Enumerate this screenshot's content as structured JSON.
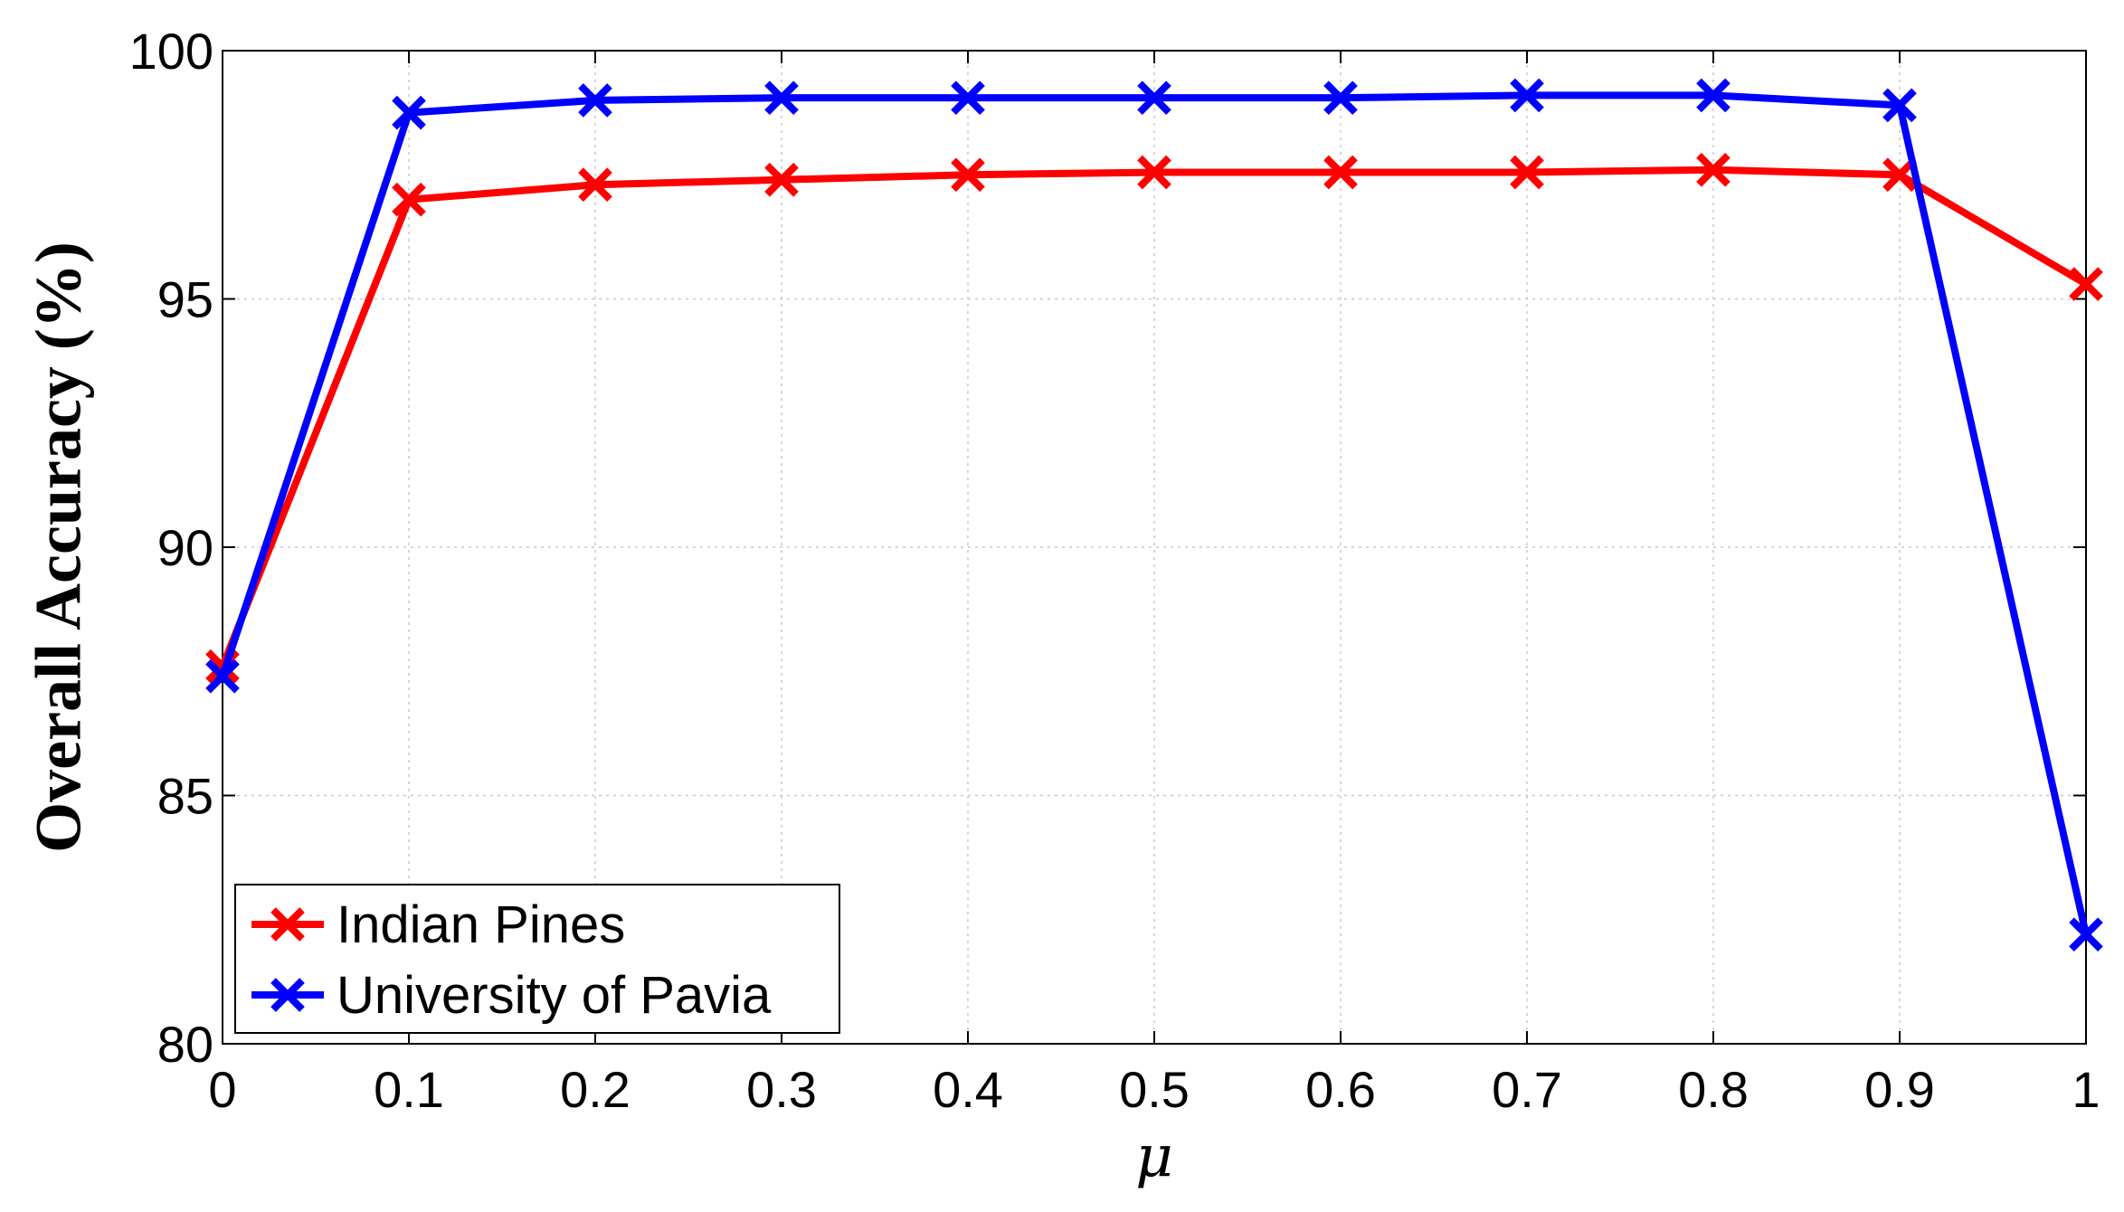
{
  "chart_data": {
    "type": "line",
    "title": "",
    "xlabel": "μ",
    "ylabel": "Overall Accuracy (%)",
    "xlim": [
      0,
      1
    ],
    "ylim": [
      80,
      100
    ],
    "xticks": [
      0,
      0.1,
      0.2,
      0.3,
      0.4,
      0.5,
      0.6,
      0.7,
      0.8,
      0.9,
      1
    ],
    "xtick_labels": [
      "0",
      "0.1",
      "0.2",
      "0.3",
      "0.4",
      "0.5",
      "0.6",
      "0.7",
      "0.8",
      "0.9",
      "1"
    ],
    "yticks": [
      80,
      85,
      90,
      95,
      100
    ],
    "ytick_labels": [
      "80",
      "85",
      "90",
      "95",
      "100"
    ],
    "grid": true,
    "legend_position": "bottom-left",
    "x": [
      0,
      0.1,
      0.2,
      0.3,
      0.4,
      0.5,
      0.6,
      0.7,
      0.8,
      0.9,
      1
    ],
    "series": [
      {
        "name": "Indian Pines",
        "color": "#ff0000",
        "marker": "x",
        "values": [
          87.6,
          97.0,
          97.3,
          97.4,
          97.5,
          97.55,
          97.55,
          97.55,
          97.6,
          97.5,
          95.3
        ]
      },
      {
        "name": "University of Pavia",
        "color": "#0000ff",
        "marker": "x",
        "values": [
          87.4,
          98.75,
          99.0,
          99.05,
          99.05,
          99.05,
          99.05,
          99.1,
          99.1,
          98.9,
          82.2
        ]
      }
    ]
  }
}
